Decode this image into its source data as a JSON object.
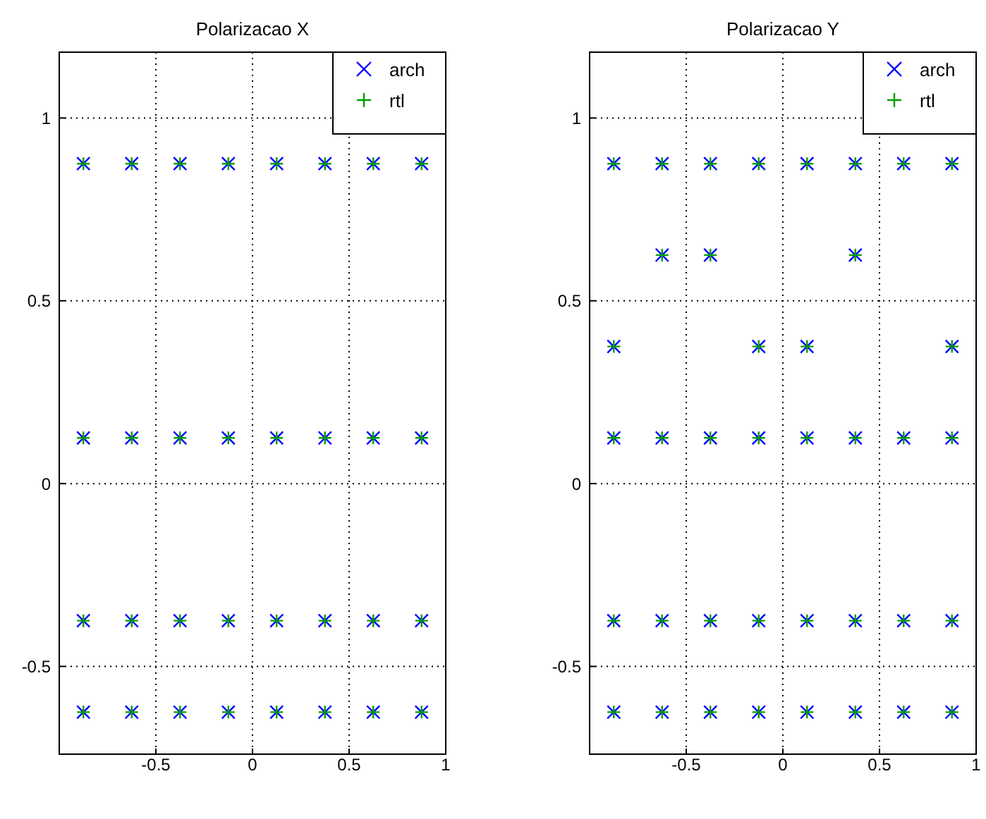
{
  "chart_data": [
    {
      "type": "scatter",
      "title": "Polarizacao X",
      "xlim": [
        -1,
        1
      ],
      "xticks": [
        -0.5,
        0,
        0.5,
        1
      ],
      "ylim": [
        -0.74,
        1.18
      ],
      "yticks": [
        -0.5,
        0,
        0.5,
        1
      ],
      "grid": true,
      "legend": "top right",
      "series": [
        {
          "name": "arch",
          "color": "#0000ff",
          "marker": "cross",
          "x": [
            -0.875,
            -0.625,
            -0.375,
            -0.125,
            0.125,
            0.375,
            0.625,
            0.875,
            -0.875,
            -0.625,
            -0.375,
            -0.125,
            0.125,
            0.375,
            0.625,
            0.875,
            -0.875,
            -0.625,
            -0.375,
            -0.125,
            0.125,
            0.375,
            0.625,
            0.875,
            -0.875,
            -0.625,
            -0.375,
            -0.125,
            0.125,
            0.375,
            0.625,
            0.875
          ],
          "values": [
            0.875,
            0.875,
            0.875,
            0.875,
            0.875,
            0.875,
            0.875,
            0.875,
            0.125,
            0.125,
            0.125,
            0.125,
            0.125,
            0.125,
            0.125,
            0.125,
            -0.375,
            -0.375,
            -0.375,
            -0.375,
            -0.375,
            -0.375,
            -0.375,
            -0.375,
            -0.625,
            -0.625,
            -0.625,
            -0.625,
            -0.625,
            -0.625,
            -0.625,
            -0.625
          ]
        },
        {
          "name": "rtl",
          "color": "#00a000",
          "marker": "plus",
          "x": [
            -0.875,
            -0.625,
            -0.375,
            -0.125,
            0.125,
            0.375,
            0.625,
            0.875,
            -0.875,
            -0.625,
            -0.375,
            -0.125,
            0.125,
            0.375,
            0.625,
            0.875,
            -0.875,
            -0.625,
            -0.375,
            -0.125,
            0.125,
            0.375,
            0.625,
            0.875,
            -0.875,
            -0.625,
            -0.375,
            -0.125,
            0.125,
            0.375,
            0.625,
            0.875
          ],
          "values": [
            0.875,
            0.875,
            0.875,
            0.875,
            0.875,
            0.875,
            0.875,
            0.875,
            0.125,
            0.125,
            0.125,
            0.125,
            0.125,
            0.125,
            0.125,
            0.125,
            -0.375,
            -0.375,
            -0.375,
            -0.375,
            -0.375,
            -0.375,
            -0.375,
            -0.375,
            -0.625,
            -0.625,
            -0.625,
            -0.625,
            -0.625,
            -0.625,
            -0.625,
            -0.625
          ]
        }
      ]
    },
    {
      "type": "scatter",
      "title": "Polarizacao Y",
      "xlim": [
        -1,
        1
      ],
      "xticks": [
        -0.5,
        0,
        0.5,
        1
      ],
      "ylim": [
        -0.74,
        1.18
      ],
      "yticks": [
        -0.5,
        0,
        0.5,
        1
      ],
      "grid": true,
      "legend": "top right",
      "series": [
        {
          "name": "arch",
          "color": "#0000ff",
          "marker": "cross",
          "x": [
            -0.875,
            -0.625,
            -0.375,
            -0.125,
            0.125,
            0.375,
            0.625,
            0.875,
            -0.625,
            -0.375,
            0.375,
            -0.875,
            -0.125,
            0.125,
            0.875,
            -0.875,
            -0.625,
            -0.375,
            -0.125,
            0.125,
            0.375,
            0.625,
            0.875,
            -0.875,
            -0.625,
            -0.375,
            -0.125,
            0.125,
            0.375,
            0.625,
            0.875,
            -0.875,
            -0.625,
            -0.375,
            -0.125,
            0.125,
            0.375,
            0.625,
            0.875
          ],
          "values": [
            0.875,
            0.875,
            0.875,
            0.875,
            0.875,
            0.875,
            0.875,
            0.875,
            0.625,
            0.625,
            0.625,
            0.375,
            0.375,
            0.375,
            0.375,
            0.125,
            0.125,
            0.125,
            0.125,
            0.125,
            0.125,
            0.125,
            0.125,
            -0.375,
            -0.375,
            -0.375,
            -0.375,
            -0.375,
            -0.375,
            -0.375,
            -0.375,
            -0.625,
            -0.625,
            -0.625,
            -0.625,
            -0.625,
            -0.625,
            -0.625,
            -0.625
          ]
        },
        {
          "name": "rtl",
          "color": "#00a000",
          "marker": "plus",
          "x": [
            -0.875,
            -0.625,
            -0.375,
            -0.125,
            0.125,
            0.375,
            0.625,
            0.875,
            -0.625,
            -0.375,
            0.375,
            -0.875,
            -0.125,
            0.125,
            0.875,
            -0.875,
            -0.625,
            -0.375,
            -0.125,
            0.125,
            0.375,
            0.625,
            0.875,
            -0.875,
            -0.625,
            -0.375,
            -0.125,
            0.125,
            0.375,
            0.625,
            0.875,
            -0.875,
            -0.625,
            -0.375,
            -0.125,
            0.125,
            0.375,
            0.625,
            0.875
          ],
          "values": [
            0.875,
            0.875,
            0.875,
            0.875,
            0.875,
            0.875,
            0.875,
            0.875,
            0.625,
            0.625,
            0.625,
            0.375,
            0.375,
            0.375,
            0.375,
            0.125,
            0.125,
            0.125,
            0.125,
            0.125,
            0.125,
            0.125,
            0.125,
            -0.375,
            -0.375,
            -0.375,
            -0.375,
            -0.375,
            -0.375,
            -0.375,
            -0.375,
            -0.625,
            -0.625,
            -0.625,
            -0.625,
            -0.625,
            -0.625,
            -0.625,
            -0.625
          ]
        }
      ]
    }
  ]
}
